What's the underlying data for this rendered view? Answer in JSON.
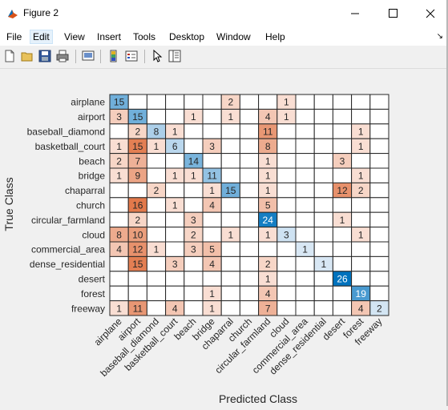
{
  "window": {
    "title": "Figure 2"
  },
  "menu": {
    "items": [
      "File",
      "Edit",
      "View",
      "Insert",
      "Tools",
      "Desktop",
      "Window",
      "Help"
    ],
    "active": "Edit"
  },
  "toolbar": {
    "icons": [
      "new-figure-icon",
      "open-file-icon",
      "save-icon",
      "print-icon",
      "link-plot-icon",
      "insert-colorbar-icon",
      "insert-legend-icon",
      "edit-plot-icon",
      "property-inspector-icon"
    ]
  },
  "chart_data": {
    "type": "heatmap",
    "title": "",
    "xlabel": "Predicted Class",
    "ylabel": "True Class",
    "classes": [
      "airplane",
      "airport",
      "baseball_diamond",
      "basketball_court",
      "beach",
      "bridge",
      "chaparral",
      "church",
      "circular_farmland",
      "cloud",
      "commercial_area",
      "dense_residential",
      "desert",
      "forest",
      "freeway"
    ],
    "matrix": [
      [
        15,
        0,
        0,
        0,
        0,
        0,
        2,
        0,
        0,
        1,
        0,
        0,
        0,
        0,
        0
      ],
      [
        3,
        15,
        0,
        0,
        1,
        0,
        1,
        0,
        4,
        1,
        0,
        0,
        0,
        0,
        0
      ],
      [
        0,
        2,
        8,
        1,
        0,
        0,
        0,
        0,
        11,
        0,
        0,
        0,
        0,
        1,
        0
      ],
      [
        1,
        15,
        1,
        6,
        0,
        3,
        0,
        0,
        8,
        0,
        0,
        0,
        0,
        1,
        0
      ],
      [
        2,
        7,
        0,
        0,
        14,
        0,
        0,
        0,
        1,
        0,
        0,
        0,
        3,
        0,
        0
      ],
      [
        1,
        9,
        0,
        1,
        1,
        11,
        0,
        0,
        1,
        0,
        0,
        0,
        0,
        1,
        0
      ],
      [
        0,
        0,
        2,
        0,
        0,
        1,
        15,
        0,
        1,
        0,
        0,
        0,
        12,
        2,
        0
      ],
      [
        0,
        16,
        0,
        1,
        0,
        4,
        0,
        0,
        5,
        0,
        0,
        0,
        0,
        0,
        0
      ],
      [
        0,
        2,
        0,
        0,
        3,
        0,
        0,
        0,
        24,
        0,
        0,
        0,
        1,
        0,
        0
      ],
      [
        8,
        10,
        0,
        0,
        2,
        0,
        1,
        0,
        1,
        3,
        0,
        0,
        0,
        1,
        0
      ],
      [
        4,
        12,
        1,
        0,
        3,
        5,
        0,
        0,
        0,
        0,
        1,
        0,
        0,
        0,
        0
      ],
      [
        0,
        15,
        0,
        3,
        0,
        4,
        0,
        0,
        2,
        0,
        0,
        1,
        0,
        0,
        0
      ],
      [
        0,
        0,
        0,
        0,
        0,
        0,
        0,
        0,
        1,
        0,
        0,
        0,
        26,
        0,
        0
      ],
      [
        0,
        0,
        0,
        0,
        0,
        1,
        0,
        0,
        4,
        0,
        0,
        0,
        0,
        19,
        0
      ],
      [
        1,
        11,
        0,
        4,
        0,
        1,
        0,
        0,
        7,
        0,
        0,
        0,
        0,
        4,
        2
      ]
    ],
    "colors": {
      "diagonal_high": "#0072bd",
      "diagonal_low": "#dbe9f5",
      "offdiag_high": "#d95319",
      "offdiag_low": "#fbe9e1"
    }
  }
}
